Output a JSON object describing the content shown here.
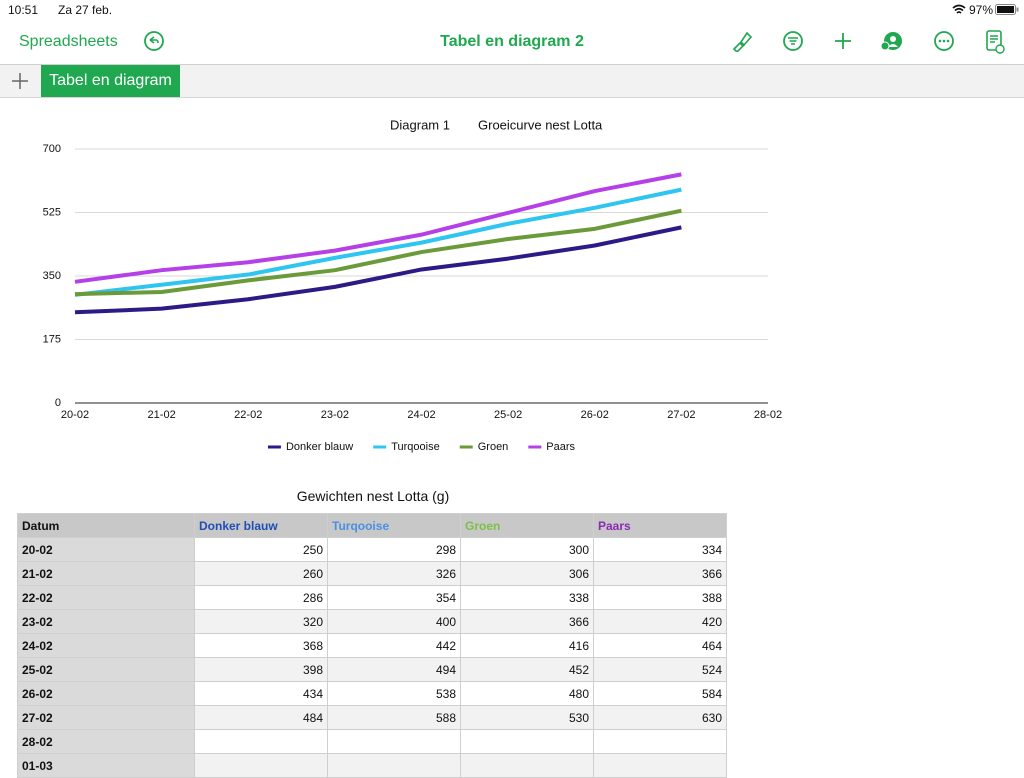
{
  "status_bar": {
    "time": "10:51",
    "date": "Za 27 feb.",
    "battery": "97%"
  },
  "toolbar": {
    "back": "Spreadsheets",
    "title": "Tabel en diagram 2"
  },
  "tabs": [
    "Tabel en diagram"
  ],
  "chart_data": {
    "type": "line",
    "title": "Diagram 1",
    "subtitle": "Groeicurve nest Lotta",
    "categories": [
      "20-02",
      "21-02",
      "22-02",
      "23-02",
      "24-02",
      "25-02",
      "26-02",
      "27-02",
      "28-02"
    ],
    "series": [
      {
        "name": "Donker blauw",
        "color": "#2e1a87",
        "values": [
          250,
          260,
          286,
          320,
          368,
          398,
          434,
          484,
          null
        ]
      },
      {
        "name": "Turqooise",
        "color": "#2ec5f0",
        "values": [
          298,
          326,
          354,
          400,
          442,
          494,
          538,
          588,
          null
        ]
      },
      {
        "name": "Groen",
        "color": "#6a9a3a",
        "values": [
          300,
          306,
          338,
          366,
          416,
          452,
          480,
          530,
          null
        ]
      },
      {
        "name": "Paars",
        "color": "#b540e8",
        "values": [
          334,
          366,
          388,
          420,
          464,
          524,
          584,
          630,
          null
        ]
      }
    ],
    "ylim": [
      0,
      700
    ],
    "yticks": [
      0,
      175,
      350,
      525,
      700
    ],
    "grid": true,
    "legend": "bottom"
  },
  "table": {
    "title": "Gewichten nest Lotta (g)",
    "header": [
      "Datum",
      "Donker blauw",
      "Turqooise",
      "Groen",
      "Paars"
    ],
    "header_colors": [
      "#111111",
      "#1f4fb5",
      "#4a90e2",
      "#7cc04a",
      "#8a2bb0"
    ],
    "rows": [
      [
        "20-02",
        250,
        298,
        300,
        334
      ],
      [
        "21-02",
        260,
        326,
        306,
        366
      ],
      [
        "22-02",
        286,
        354,
        338,
        388
      ],
      [
        "23-02",
        320,
        400,
        366,
        420
      ],
      [
        "24-02",
        368,
        442,
        416,
        464
      ],
      [
        "25-02",
        398,
        494,
        452,
        524
      ],
      [
        "26-02",
        434,
        538,
        480,
        584
      ],
      [
        "27-02",
        484,
        588,
        530,
        630
      ],
      [
        "28-02",
        null,
        null,
        null,
        null
      ],
      [
        "01-03",
        null,
        null,
        null,
        null
      ]
    ]
  }
}
